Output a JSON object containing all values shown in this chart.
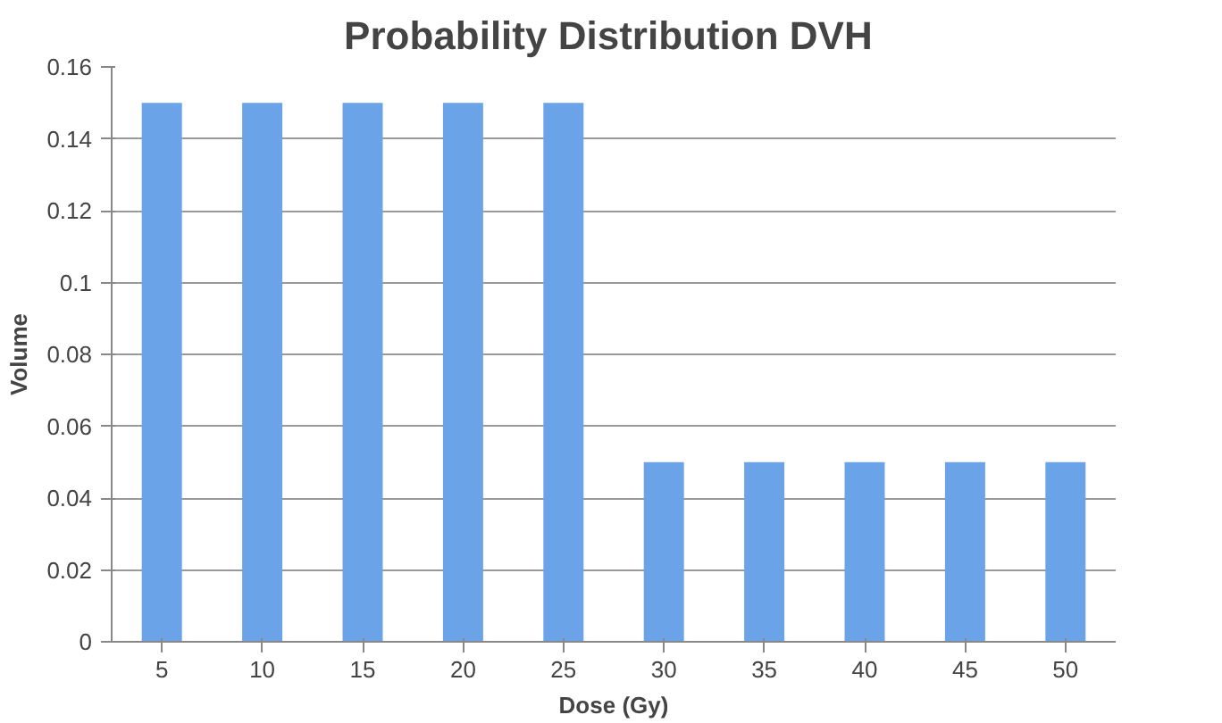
{
  "chart_data": {
    "type": "bar",
    "title": "Probability  Distribution DVH",
    "xlabel": "Dose (Gy)",
    "ylabel": "Volume",
    "categories": [
      "5",
      "10",
      "15",
      "20",
      "25",
      "30",
      "35",
      "40",
      "45",
      "50"
    ],
    "values": [
      0.15,
      0.15,
      0.15,
      0.15,
      0.15,
      0.05,
      0.05,
      0.05,
      0.05,
      0.05
    ],
    "color": "#6aa3e8",
    "ylim": [
      0,
      0.16
    ],
    "yticks": [
      0,
      0.02,
      0.04,
      0.06,
      0.08,
      0.1,
      0.12,
      0.14,
      0.16
    ],
    "grid": "y"
  }
}
